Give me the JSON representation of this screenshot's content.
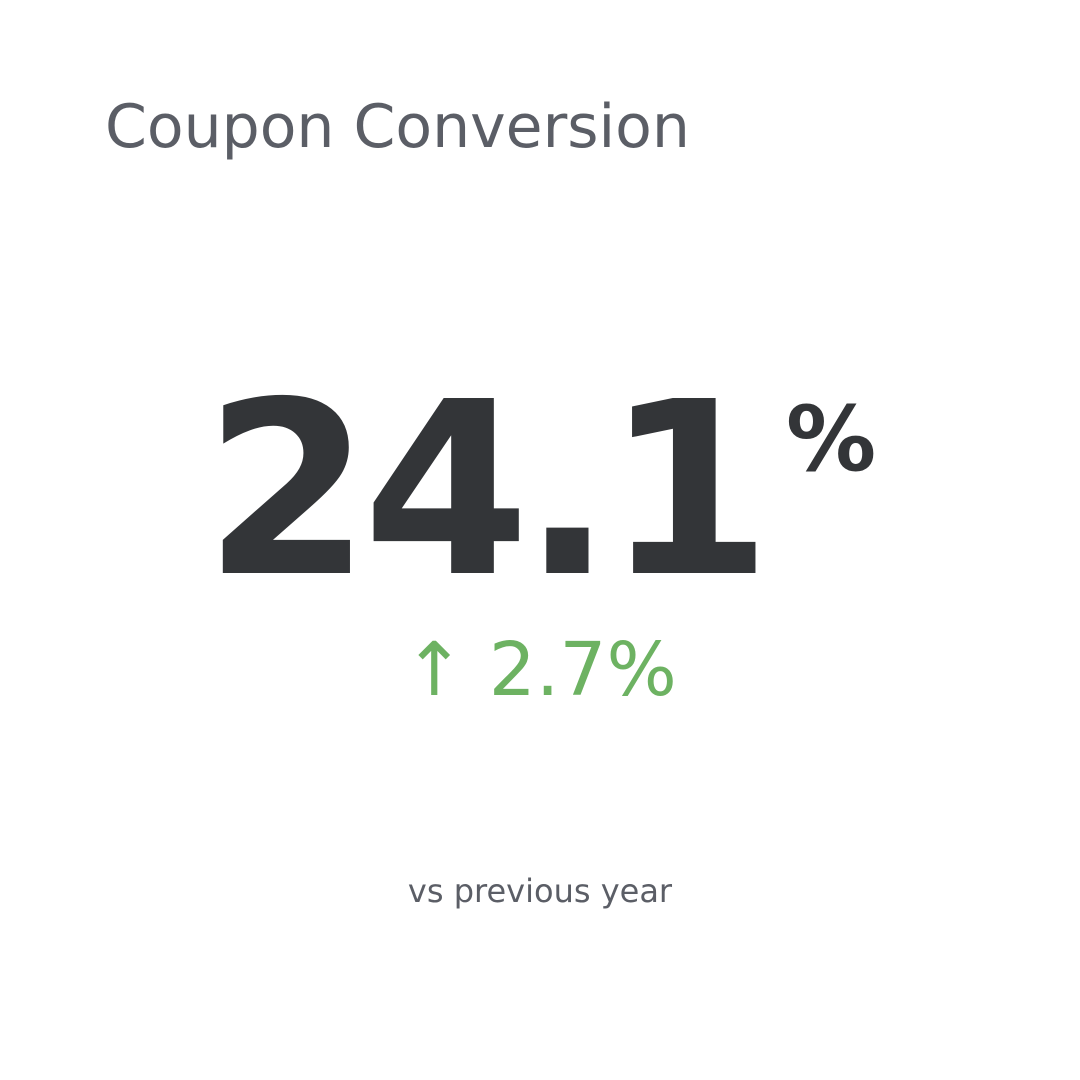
{
  "title": "Coupon Conversion",
  "value": "24.1",
  "unit": "%",
  "delta": {
    "icon": "arrow-up-icon",
    "arrow": "↑",
    "text": "2.7%",
    "color": "#6db262"
  },
  "comparison": "vs previous year"
}
